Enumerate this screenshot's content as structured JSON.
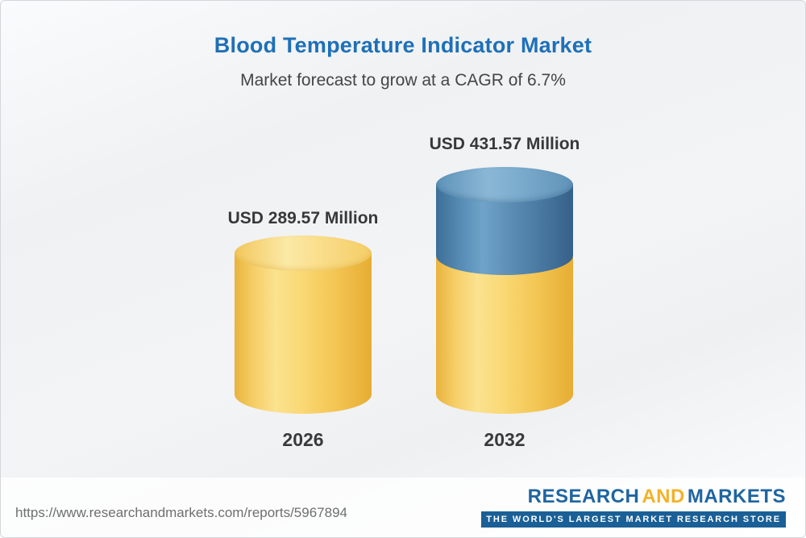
{
  "chart": {
    "title": "Blood Temperature Indicator Market",
    "subtitle": "Market forecast to grow at a CAGR of 6.7%"
  },
  "chart_data": {
    "type": "bar",
    "bar_style": "cylinder-3d",
    "categories": [
      "2026",
      "2032"
    ],
    "values": [
      289.57,
      431.57
    ],
    "value_labels": [
      "USD 289.57 Million",
      "USD 431.57 Million"
    ],
    "unit": "USD Million",
    "title": "Blood Temperature Indicator Market",
    "subtitle": "Market forecast to grow at a CAGR of 6.7%",
    "cagr": "6.7%",
    "legend_position": "none",
    "grid": false,
    "colors": {
      "base_segment": "#F5CB5F",
      "growth_segment": "#4C80AC",
      "title_text": "#1E70B8",
      "label_text": "#383838"
    }
  },
  "footer": {
    "url": "https://www.researchandmarkets.com/reports/5967894",
    "logo": {
      "research": "RESEARCH",
      "and": "AND",
      "markets": "MARKETS",
      "tagline": "THE WORLD'S LARGEST MARKET RESEARCH STORE"
    }
  }
}
